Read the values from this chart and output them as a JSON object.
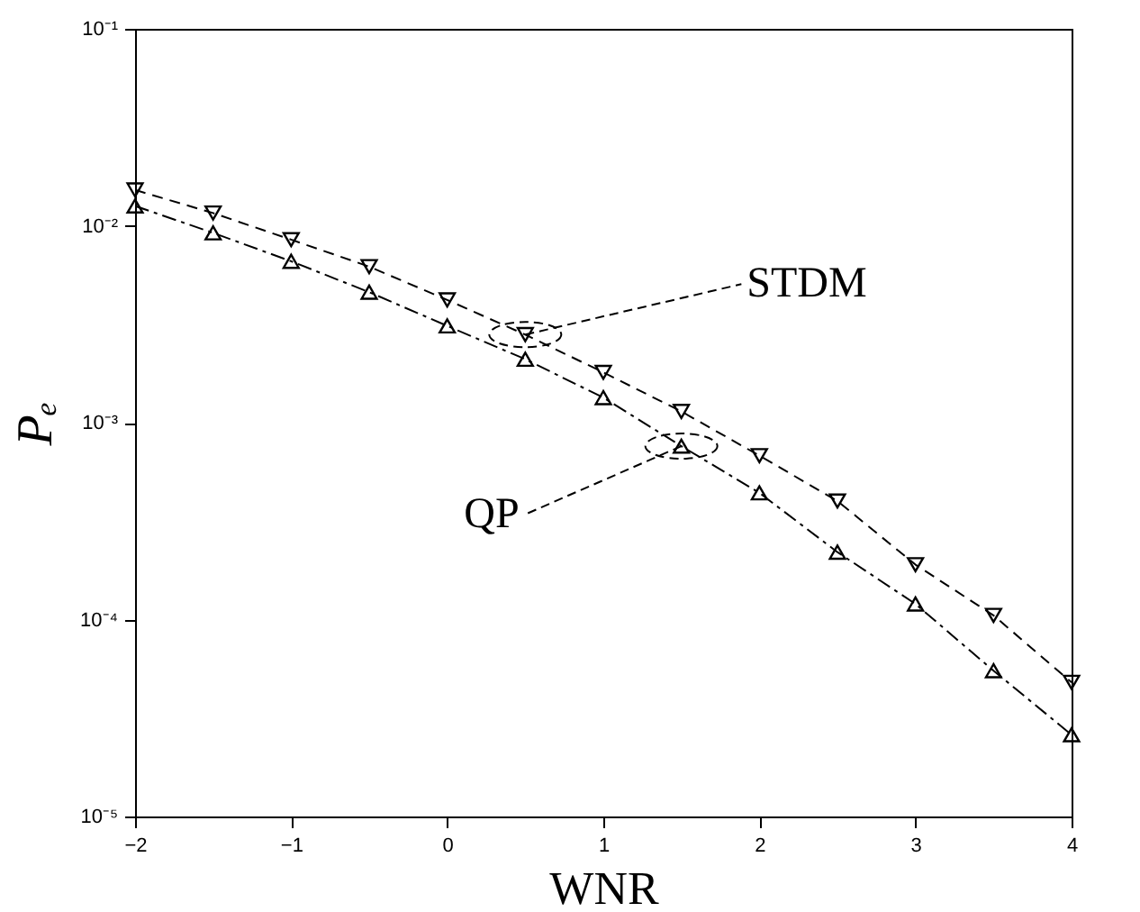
{
  "chart_data": {
    "type": "line",
    "xlabel": "WNR",
    "ylabel": "Pₑ",
    "log": "y",
    "grid": false,
    "x": [
      -2,
      -1.5,
      -1,
      -0.5,
      0,
      0.5,
      1,
      1.5,
      2,
      2.5,
      3,
      3.5,
      4
    ],
    "xlim": [
      -2,
      4
    ],
    "xticks": [
      -2,
      -1,
      0,
      1,
      2,
      3,
      4
    ],
    "ylim": [
      1e-05,
      0.1
    ],
    "yticks": [
      {
        "value": 1e-05,
        "label": "10⁻⁵"
      },
      {
        "value": 0.0001,
        "label": "10⁻⁴"
      },
      {
        "value": 0.001,
        "label": "10⁻³"
      },
      {
        "value": 0.01,
        "label": "10⁻²"
      },
      {
        "value": 0.1,
        "label": "10⁻¹"
      }
    ],
    "series": [
      {
        "color": "#000000",
        "marker": "triangle-down",
        "line_style": "dashed",
        "values": [
          0.0152,
          0.0116,
          0.0085,
          0.0062,
          0.0042,
          0.0028,
          0.0018,
          0.00114,
          0.00068,
          0.0004,
          0.00019,
          0.000105,
          4.8e-05
        ]
      },
      {
        "color": "#000000",
        "marker": "triangle-up",
        "line_style": "dashdot",
        "values": [
          0.0126,
          0.0092,
          0.0066,
          0.0046,
          0.0031,
          0.0021,
          0.00134,
          0.00076,
          0.00044,
          0.00022,
          0.00012,
          5.5e-05,
          2.6e-05
        ]
      }
    ],
    "annotations": [
      {
        "text": "STDM",
        "x": 0.5,
        "y": 0.0028
      },
      {
        "text": "QP",
        "x": 1.5,
        "y": 0.00076
      }
    ]
  }
}
